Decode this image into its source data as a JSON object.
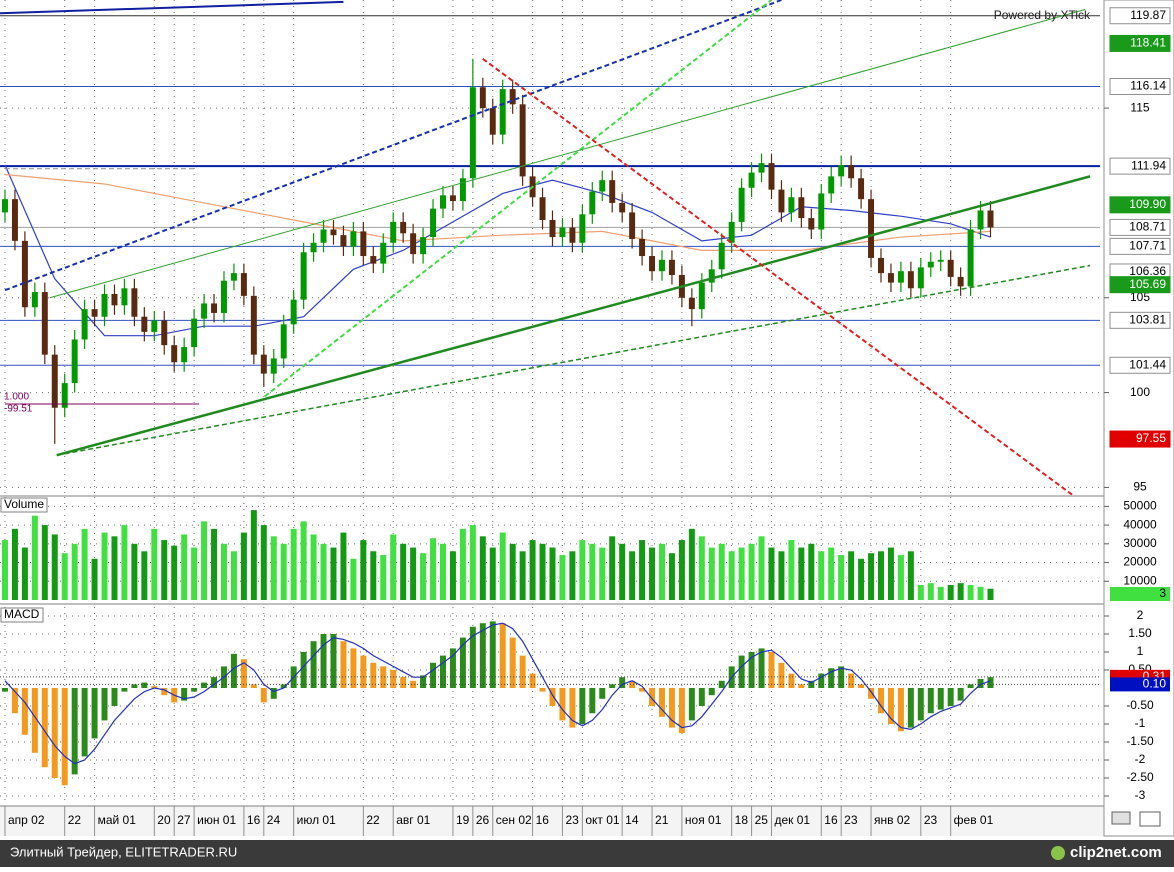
{
  "watermark": "Powered by XTick",
  "annotation_labels": [
    "1.000",
    "-99.51"
  ],
  "footer": {
    "text": "Элитный Трейдер, ELITETRADER.RU",
    "brand": "clip2net.com"
  },
  "chart_data": [
    {
      "type": "candlestick",
      "xlim": [
        -0.5,
        110
      ],
      "xticks": [
        {
          "value": 0,
          "label": "апр 02"
        },
        {
          "value": 6,
          "label": "22"
        },
        {
          "value": 9,
          "label": "май 01"
        },
        {
          "value": 15,
          "label": "20"
        },
        {
          "value": 17,
          "label": "27"
        },
        {
          "value": 19,
          "label": "июн 01"
        },
        {
          "value": 24,
          "label": "16"
        },
        {
          "value": 26,
          "label": "24"
        },
        {
          "value": 29,
          "label": "июл 01"
        },
        {
          "value": 36,
          "label": "22"
        },
        {
          "value": 39,
          "label": "авг 01"
        },
        {
          "value": 45,
          "label": "19"
        },
        {
          "value": 47,
          "label": "26"
        },
        {
          "value": 49,
          "label": "сен 02"
        },
        {
          "value": 53,
          "label": "16"
        },
        {
          "value": 56,
          "label": "23"
        },
        {
          "value": 58,
          "label": "окт 01"
        },
        {
          "value": 62,
          "label": "14"
        },
        {
          "value": 65,
          "label": "21"
        },
        {
          "value": 68,
          "label": "ноя 01"
        },
        {
          "value": 73,
          "label": "18"
        },
        {
          "value": 75,
          "label": "25"
        },
        {
          "value": 77,
          "label": "дек 01"
        },
        {
          "value": 82,
          "label": "16"
        },
        {
          "value": 84,
          "label": "23"
        },
        {
          "value": 87,
          "label": "янв 02"
        },
        {
          "value": 92,
          "label": "23"
        },
        {
          "value": 95,
          "label": "фев 01"
        }
      ],
      "ylim": [
        94.6,
        120.7
      ],
      "yticks": [
        95,
        100,
        105,
        115
      ],
      "up_color": "#009a00",
      "down_color": "#5a2a10",
      "open": [
        109.5,
        110.2,
        108.0,
        104.5,
        105.3,
        102.0,
        99.2,
        100.5,
        102.8,
        104.4,
        104.0,
        105.2,
        104.6,
        105.5,
        104.0,
        103.2,
        103.8,
        102.5,
        101.6,
        102.4,
        103.9,
        104.7,
        104.2,
        105.9,
        106.3,
        105.1,
        102.0,
        101.0,
        101.8,
        103.6,
        104.9,
        107.4,
        107.9,
        108.6,
        108.3,
        107.7,
        108.5,
        107.2,
        106.8,
        107.9,
        109.0,
        108.4,
        107.3,
        108.2,
        109.7,
        110.4,
        110.1,
        111.3,
        116.1,
        115.0,
        113.6,
        116.0,
        115.2,
        111.4,
        110.3,
        109.1,
        108.2,
        108.7,
        107.9,
        109.4,
        110.6,
        111.2,
        110.0,
        109.5,
        108.1,
        107.2,
        106.4,
        107.0,
        106.2,
        105.0,
        104.4,
        105.8,
        106.5,
        107.9,
        109.0,
        110.8,
        111.6,
        112.1,
        110.7,
        109.5,
        110.3,
        109.2,
        108.6,
        110.5,
        111.4,
        112.0,
        111.3,
        110.2,
        107.1,
        106.3,
        105.8,
        106.4,
        105.5,
        106.6,
        106.9,
        107.0,
        106.1,
        105.6,
        108.6,
        109.6
      ],
      "high": [
        110.7,
        110.7,
        108.5,
        105.8,
        105.8,
        102.5,
        101.0,
        103.3,
        104.9,
        104.9,
        105.7,
        105.7,
        106.0,
        106.0,
        104.5,
        104.3,
        104.3,
        103.0,
        102.9,
        104.4,
        105.2,
        105.2,
        106.4,
        106.8,
        106.8,
        105.6,
        102.5,
        102.3,
        104.1,
        105.4,
        107.9,
        108.4,
        109.1,
        109.1,
        108.8,
        109.0,
        109.0,
        107.7,
        108.4,
        109.5,
        109.5,
        108.9,
        108.7,
        110.2,
        110.9,
        110.9,
        111.8,
        117.6,
        116.6,
        115.5,
        116.5,
        116.5,
        115.7,
        111.9,
        110.8,
        109.6,
        109.2,
        109.2,
        109.9,
        111.1,
        111.7,
        111.7,
        110.5,
        110.0,
        108.6,
        107.7,
        107.5,
        107.5,
        106.7,
        105.5,
        106.3,
        107.0,
        108.4,
        109.5,
        111.3,
        112.1,
        112.6,
        112.6,
        111.2,
        110.8,
        110.8,
        109.7,
        111.0,
        111.9,
        112.5,
        112.5,
        111.8,
        110.7,
        107.6,
        106.8,
        106.9,
        106.9,
        107.1,
        107.4,
        107.5,
        107.5,
        106.6,
        109.1,
        110.1,
        110.1
      ],
      "low": [
        109.0,
        107.5,
        104.0,
        104.0,
        101.5,
        97.3,
        98.7,
        100.0,
        102.3,
        103.5,
        103.5,
        104.1,
        104.1,
        103.5,
        102.7,
        102.7,
        102.0,
        101.1,
        101.1,
        101.9,
        103.4,
        103.7,
        103.7,
        105.4,
        104.6,
        101.5,
        100.3,
        100.5,
        101.3,
        103.1,
        104.4,
        106.9,
        107.4,
        107.8,
        107.2,
        107.2,
        106.7,
        106.3,
        106.3,
        107.4,
        107.9,
        106.8,
        106.8,
        107.7,
        109.2,
        109.6,
        109.6,
        110.8,
        114.5,
        113.1,
        113.1,
        114.7,
        110.9,
        109.8,
        108.6,
        107.7,
        107.7,
        107.4,
        107.4,
        108.9,
        110.1,
        109.5,
        109.0,
        107.6,
        106.7,
        105.9,
        105.9,
        105.7,
        104.5,
        103.5,
        103.9,
        105.3,
        106.0,
        107.4,
        108.5,
        110.3,
        111.1,
        110.2,
        109.0,
        109.0,
        108.7,
        108.1,
        108.1,
        110.0,
        110.9,
        110.8,
        109.7,
        106.6,
        105.8,
        105.3,
        105.3,
        105.0,
        105.0,
        106.1,
        106.4,
        105.6,
        105.1,
        105.1,
        108.1,
        108.2
      ],
      "close": [
        110.2,
        108.0,
        104.5,
        105.3,
        102.0,
        99.2,
        100.5,
        102.8,
        104.4,
        104.0,
        105.2,
        104.6,
        105.5,
        104.0,
        103.2,
        103.8,
        102.5,
        101.6,
        102.4,
        103.9,
        104.7,
        104.2,
        105.9,
        106.3,
        105.1,
        102.0,
        101.0,
        101.8,
        103.6,
        104.9,
        107.4,
        107.9,
        108.6,
        108.3,
        107.7,
        108.5,
        107.2,
        106.8,
        107.9,
        109.0,
        108.4,
        107.3,
        108.2,
        109.7,
        110.4,
        110.1,
        111.3,
        116.1,
        115.0,
        113.6,
        116.0,
        115.2,
        111.4,
        110.3,
        109.1,
        108.2,
        108.7,
        107.9,
        109.4,
        110.6,
        111.2,
        110.0,
        109.5,
        108.1,
        107.2,
        106.4,
        107.0,
        106.2,
        105.0,
        104.4,
        105.8,
        106.5,
        107.9,
        109.0,
        110.8,
        111.6,
        112.1,
        110.7,
        109.5,
        110.3,
        109.2,
        108.6,
        110.5,
        111.4,
        112.0,
        111.3,
        110.2,
        107.1,
        106.3,
        105.8,
        106.4,
        105.5,
        106.6,
        106.9,
        107.0,
        106.1,
        105.6,
        108.6,
        109.6,
        108.71
      ],
      "moving_averages": [
        {
          "color": "#3040c8",
          "x": [
            0,
            5,
            10,
            15,
            20,
            25,
            30,
            35,
            40,
            45,
            50,
            55,
            60,
            65,
            70,
            75,
            80,
            85,
            90,
            95,
            99
          ],
          "values": [
            112.0,
            106.0,
            103.0,
            103.0,
            103.5,
            103.5,
            104.0,
            106.5,
            107.5,
            109.0,
            110.5,
            111.2,
            110.5,
            109.5,
            108.0,
            108.3,
            109.8,
            109.6,
            109.3,
            108.9,
            108.2
          ]
        },
        {
          "color": "#f0a070",
          "x": [
            0,
            10,
            20,
            30,
            40,
            50,
            60,
            70,
            80,
            90,
            99
          ],
          "values": [
            111.5,
            111.0,
            110.0,
            109.0,
            108.0,
            108.3,
            108.5,
            107.5,
            107.5,
            108.2,
            108.5
          ]
        }
      ],
      "trendlines": [
        {
          "x": [
            -0.5,
            34
          ],
          "y": [
            120.0,
            120.6
          ],
          "color": "#1020a0",
          "dash": false,
          "width": 2
        },
        {
          "x": [
            0,
            78
          ],
          "y": [
            105.4,
            120.7
          ],
          "color": "#1830b0",
          "dash": true,
          "width": 2
        },
        {
          "x": [
            26.1,
            77
          ],
          "y": [
            99.8,
            120.7
          ],
          "color": "#40dd40",
          "dash": true,
          "width": 2
        },
        {
          "x": [
            4.5,
            108.5
          ],
          "y": [
            105.0,
            120.2
          ],
          "color": "#30a030",
          "dash": false,
          "width": 1
        },
        {
          "x": [
            5.2,
            109
          ],
          "y": [
            96.7,
            111.4
          ],
          "color": "#208a20",
          "dash": false,
          "width": 2.5
        },
        {
          "x": [
            5.2,
            109
          ],
          "y": [
            96.7,
            106.7
          ],
          "color": "#208a20",
          "dash": true,
          "width": 1.5
        },
        {
          "x": [
            48,
            107.5
          ],
          "y": [
            117.6,
            94.5
          ],
          "color": "#e02020",
          "dash": true,
          "width": 2
        },
        {
          "x": [
            0,
            19
          ],
          "y": [
            111.8,
            111.8
          ],
          "color": "#909090",
          "dash": true,
          "width": 1
        },
        {
          "x": [
            0,
            19.5
          ],
          "y": [
            99.4,
            99.4
          ],
          "color": "#800060",
          "dash": false,
          "width": 1
        }
      ],
      "levels": [
        {
          "value": 119.87,
          "label": "119.87",
          "line_color": "#303030",
          "box_color": "#ffffff"
        },
        {
          "value": 118.41,
          "label": "118.41",
          "box_color": "#1a9a1a"
        },
        {
          "value": 116.14,
          "label": "116.14",
          "line_color": "#3050c0",
          "box_color": "#ffffff"
        },
        {
          "value": 111.94,
          "label": "111.94",
          "line_color": "#0020a0",
          "box_color": "#ffffff"
        },
        {
          "value": 109.9,
          "label": "109.90",
          "box_color": "#1a9a1a"
        },
        {
          "value": 106.36,
          "label": "106.36",
          "box_color": "#ffffff"
        },
        {
          "value": 107.71,
          "label": "107.71",
          "line_color": "#3050c0",
          "box_color": "#ffffff"
        },
        {
          "value": 108.71,
          "label": "108.71",
          "line_color": "#a0a0a0",
          "box_color": "#ffffff"
        },
        {
          "value": 105.69,
          "label": "105.69",
          "box_color": "#1a9a1a"
        },
        {
          "value": 103.81,
          "label": "103.81",
          "line_color": "#3050c0",
          "box_color": "#ffffff"
        },
        {
          "value": 101.44,
          "label": "101.44",
          "line_color": "#3050c0",
          "box_color": "#ffffff"
        },
        {
          "value": 97.55,
          "label": "97.55",
          "box_color": "#e00000"
        }
      ]
    },
    {
      "type": "bar",
      "title": "Volume",
      "ylim": [
        0,
        55000
      ],
      "yticks": [
        10000,
        20000,
        30000,
        40000,
        50000
      ],
      "up_color": "#3fe03f",
      "down_color": "#129a12",
      "current_value": 3,
      "current_color": "#3fe03f",
      "values": [
        32000,
        38000,
        28000,
        45000,
        40000,
        35000,
        25000,
        30000,
        38000,
        22000,
        36000,
        34000,
        40000,
        30000,
        26000,
        38000,
        32000,
        29000,
        35000,
        28000,
        42000,
        38000,
        30000,
        26000,
        36000,
        48000,
        40000,
        34000,
        30000,
        38000,
        42000,
        35000,
        30000,
        28000,
        36000,
        22000,
        32000,
        26000,
        24000,
        35000,
        30000,
        28000,
        25000,
        33000,
        30000,
        26000,
        38000,
        40000,
        34000,
        28000,
        36000,
        30000,
        26000,
        32000,
        30000,
        28000,
        24000,
        26000,
        32000,
        30000,
        28000,
        34000,
        30000,
        26000,
        32000,
        28000,
        30000,
        25000,
        32000,
        38000,
        34000,
        28000,
        30000,
        26000,
        28000,
        30000,
        34000,
        28000,
        26000,
        32000,
        28000,
        30000,
        26000,
        28000,
        24000,
        26000,
        22000,
        25000,
        26000,
        28000,
        24000,
        26000,
        8000,
        9000,
        7000,
        8000,
        9000,
        8000,
        7000,
        6000
      ]
    },
    {
      "type": "macd",
      "title": "MACD",
      "ylim": [
        -3.25,
        2.25
      ],
      "yticks": [
        2,
        {
          "value": 1.5,
          "label": "1.50"
        },
        1,
        {
          "value": 0.5,
          "label": "0.50"
        },
        {
          "value": -0.5,
          "label": "-0.50"
        },
        -1,
        {
          "value": -1.5,
          "label": "-1.50"
        },
        -2,
        {
          "value": -2.5,
          "label": "-2.50"
        },
        -3
      ],
      "rise_color": "#2a8a1a",
      "fall_color": "#f39a1e",
      "signal_color": "#2030c0",
      "markers": [
        {
          "value": 0.31,
          "color": "#e00000"
        },
        {
          "value": 0.1,
          "label": "0.10",
          "color": "#0010c0"
        }
      ],
      "histogram": [
        -0.1,
        -0.7,
        -1.3,
        -1.8,
        -2.2,
        -2.5,
        -2.7,
        -2.4,
        -1.9,
        -1.4,
        -0.9,
        -0.5,
        -0.1,
        0.1,
        0.15,
        0.05,
        -0.2,
        -0.4,
        -0.35,
        -0.1,
        0.15,
        0.3,
        0.6,
        0.95,
        0.8,
        0.1,
        -0.4,
        -0.3,
        0.1,
        0.6,
        1.0,
        1.3,
        1.5,
        1.5,
        1.3,
        1.1,
        0.9,
        0.7,
        0.6,
        0.5,
        0.3,
        0.2,
        0.35,
        0.7,
        0.9,
        1.1,
        1.4,
        1.7,
        1.8,
        1.85,
        1.8,
        1.4,
        0.9,
        0.4,
        -0.1,
        -0.5,
        -0.9,
        -1.1,
        -1.0,
        -0.7,
        -0.3,
        0.1,
        0.3,
        0.2,
        -0.1,
        -0.5,
        -0.8,
        -1.1,
        -1.25,
        -0.9,
        -0.5,
        -0.2,
        0.2,
        0.6,
        0.9,
        1.0,
        1.1,
        1.0,
        0.7,
        0.4,
        0.1,
        0.2,
        0.4,
        0.55,
        0.6,
        0.4,
        0.1,
        -0.3,
        -0.7,
        -1.0,
        -1.2,
        -1.1,
        -0.9,
        -0.7,
        -0.6,
        -0.5,
        -0.35,
        0.1,
        0.25,
        0.3
      ],
      "signal": [
        0.2,
        -0.1,
        -0.4,
        -0.8,
        -1.2,
        -1.6,
        -1.9,
        -2.1,
        -2.0,
        -1.7,
        -1.3,
        -0.9,
        -0.6,
        -0.3,
        -0.1,
        0.0,
        -0.05,
        -0.2,
        -0.3,
        -0.25,
        -0.1,
        0.1,
        0.3,
        0.55,
        0.7,
        0.5,
        0.1,
        -0.1,
        0.0,
        0.3,
        0.6,
        0.9,
        1.2,
        1.4,
        1.35,
        1.25,
        1.1,
        0.9,
        0.75,
        0.6,
        0.45,
        0.3,
        0.3,
        0.5,
        0.7,
        0.9,
        1.2,
        1.45,
        1.6,
        1.75,
        1.8,
        1.65,
        1.3,
        0.8,
        0.3,
        -0.2,
        -0.6,
        -0.9,
        -1.05,
        -0.9,
        -0.6,
        -0.2,
        0.1,
        0.2,
        0.05,
        -0.3,
        -0.6,
        -0.9,
        -1.1,
        -1.05,
        -0.8,
        -0.45,
        -0.1,
        0.3,
        0.6,
        0.85,
        1.0,
        1.05,
        0.85,
        0.55,
        0.25,
        0.15,
        0.3,
        0.45,
        0.55,
        0.5,
        0.25,
        -0.1,
        -0.5,
        -0.85,
        -1.1,
        -1.15,
        -1.0,
        -0.8,
        -0.65,
        -0.55,
        -0.45,
        -0.15,
        0.1,
        0.2
      ]
    }
  ]
}
